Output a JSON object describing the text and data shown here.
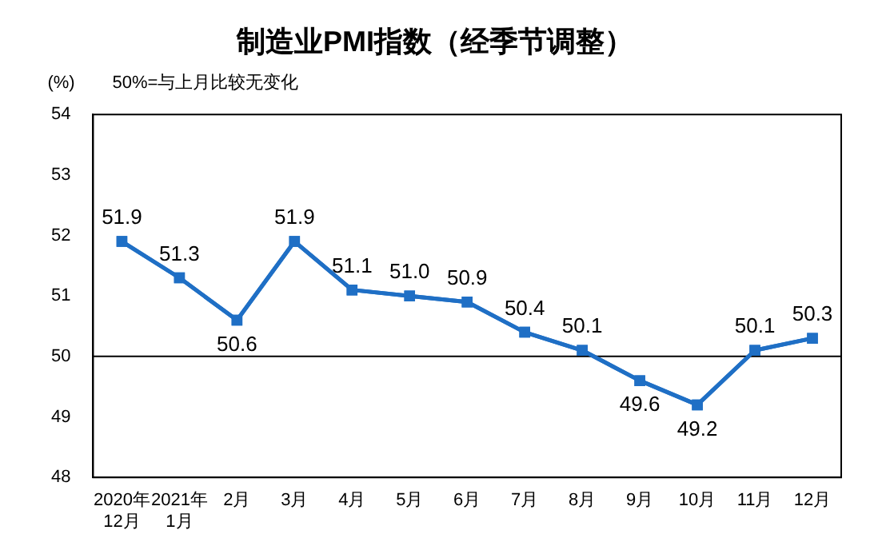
{
  "chart_data": {
    "type": "line",
    "title": "制造业PMI指数（经季节调整）",
    "ylabel": "(%)",
    "annotations": [
      "50%=与上月比较无变化"
    ],
    "categories": [
      "2020年\n12月",
      "2021年\n1月",
      "2月",
      "3月",
      "4月",
      "5月",
      "6月",
      "7月",
      "8月",
      "9月",
      "10月",
      "11月",
      "12月"
    ],
    "series": [
      {
        "color": "#1f6fc5",
        "values": [
          51.9,
          51.3,
          50.6,
          51.9,
          51.1,
          51.0,
          50.9,
          50.4,
          50.1,
          49.6,
          49.2,
          50.1,
          50.3
        ]
      }
    ],
    "ylim": [
      48,
      54
    ],
    "yticks": [
      48,
      49,
      50,
      51,
      52,
      53,
      54
    ],
    "ref_lines": [
      {
        "axis": "y",
        "value": 50,
        "color": "#000000"
      }
    ],
    "value_labels": [
      "51.9",
      "51.3",
      "50.6",
      "51.9",
      "51.1",
      "51.0",
      "50.9",
      "50.4",
      "50.1",
      "49.6",
      "49.2",
      "50.1",
      "50.3"
    ],
    "grid": false,
    "legend": false,
    "marker": "square",
    "line_style": "solid"
  }
}
